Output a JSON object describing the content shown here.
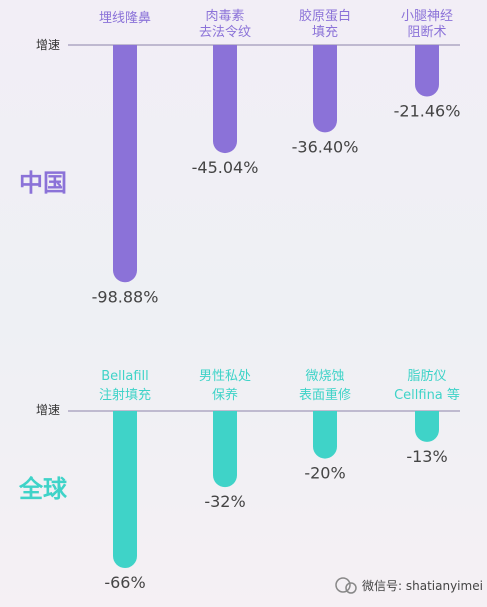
{
  "colors": {
    "china": "#8b72d8",
    "global": "#3fd3c8",
    "baseline": "#8d83aa",
    "text": "#444444"
  },
  "watermark": {
    "account_label": "微信号: shatianyimei"
  },
  "chart_data": [
    {
      "type": "bar",
      "region_label": "中国",
      "axis_label": "增速",
      "categories": [
        "埋线隆鼻",
        "肉毒素\n去法令纹",
        "胶原蛋白\n填充",
        "小腿神经\n阻断术"
      ],
      "values": [
        -98.88,
        -45.04,
        -36.4,
        -21.46
      ],
      "value_labels": [
        "-98.88%",
        "-45.04%",
        "-36.40%",
        "-21.46%"
      ],
      "ylim": [
        -100,
        0
      ]
    },
    {
      "type": "bar",
      "region_label": "全球",
      "axis_label": "增速",
      "categories": [
        "Bellafill\n注射填充",
        "男性私处\n保养",
        "微烧蚀\n表面重修",
        "脂肪仪\nCellfina 等"
      ],
      "values": [
        -66,
        -32,
        -20,
        -13
      ],
      "value_labels": [
        "-66%",
        "-32%",
        "-20%",
        "-13%"
      ],
      "ylim": [
        -66,
        0
      ]
    }
  ]
}
